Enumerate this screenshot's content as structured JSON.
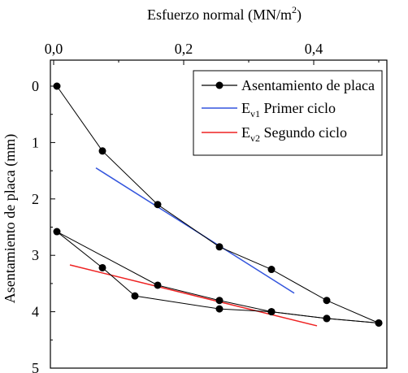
{
  "chart_data": {
    "type": "line",
    "xlabel": "Esfuerzo normal (MN/m",
    "xlabel_sup": "2",
    "xlabel_end": ")",
    "ylabel": "Asentamiento de placa (mm)",
    "x_axis_position": "top",
    "y_inverted": true,
    "xlim": [
      0,
      0.5
    ],
    "ylim": [
      0,
      5
    ],
    "xticks": [
      0.0,
      0.2,
      0.4
    ],
    "xtick_labels": [
      "0,0",
      "0,2",
      "0,4"
    ],
    "yticks": [
      0,
      1,
      2,
      3,
      4,
      5
    ],
    "ytick_labels": [
      "0",
      "1",
      "2",
      "3",
      "4",
      "5"
    ],
    "legend_position": "top-right",
    "series": [
      {
        "name": "Asentamiento de placa",
        "color": "#000000",
        "marker": "circle",
        "x": [
          0.005,
          0.075,
          0.16,
          0.255,
          0.335,
          0.42,
          0.5,
          0.42,
          0.335,
          0.255,
          0.125,
          0.075,
          0.005,
          0.16,
          0.255,
          0.335,
          0.42,
          0.5
        ],
        "y": [
          0.0,
          1.15,
          2.1,
          2.85,
          3.25,
          3.8,
          4.2,
          4.12,
          4.0,
          3.95,
          3.72,
          3.22,
          2.58,
          3.53,
          3.8,
          4.0,
          4.12,
          4.2
        ],
        "segments": [
          [
            [
              0.005,
              0.0
            ],
            [
              0.075,
              1.15
            ],
            [
              0.16,
              2.1
            ],
            [
              0.255,
              2.85
            ],
            [
              0.335,
              3.25
            ],
            [
              0.42,
              3.8
            ],
            [
              0.5,
              4.2
            ]
          ],
          [
            [
              0.5,
              4.2
            ],
            [
              0.42,
              4.12
            ],
            [
              0.335,
              4.0
            ],
            [
              0.255,
              3.95
            ],
            [
              0.125,
              3.72
            ],
            [
              0.075,
              3.22
            ],
            [
              0.005,
              2.58
            ]
          ],
          [
            [
              0.005,
              2.58
            ],
            [
              0.16,
              3.53
            ],
            [
              0.255,
              3.8
            ],
            [
              0.335,
              4.0
            ],
            [
              0.42,
              4.12
            ],
            [
              0.5,
              4.2
            ]
          ]
        ]
      },
      {
        "name_main": "E",
        "name_sub": "v1",
        "name_rest": " Primer ciclo",
        "color": "#3355dd",
        "marker": "none",
        "x": [
          0.065,
          0.37
        ],
        "y": [
          1.45,
          3.67
        ]
      },
      {
        "name_main": "E",
        "name_sub": "v2",
        "name_rest": " Segundo ciclo",
        "color": "#ee2222",
        "marker": "none",
        "x": [
          0.025,
          0.405
        ],
        "y": [
          3.17,
          4.25
        ]
      }
    ]
  }
}
